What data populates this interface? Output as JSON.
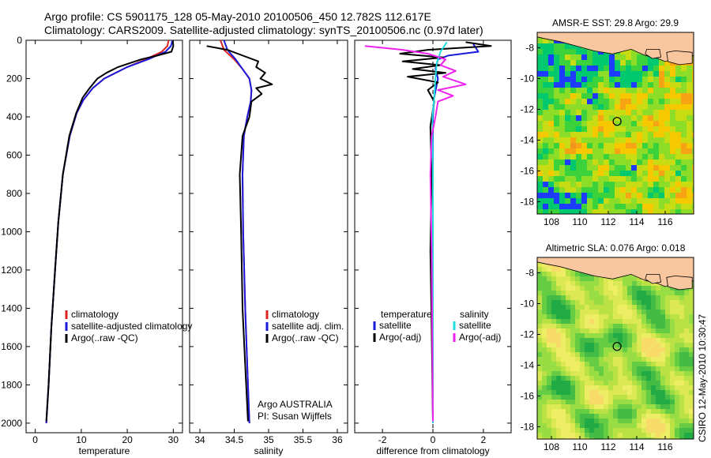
{
  "title_line1": "Argo profile: CS 5901175_128 05-May-2010 20100506_450 12.782S 112.617E",
  "title_line2": "Climatology: CARS2009. Satellite-adjusted climatology: synTS_20100506.nc (0.97d later)",
  "credit_vertical": "CSIRO 12-May-2010 10:30:47",
  "colors": {
    "climatology": "#dd2222",
    "satellite": "#1a1adc",
    "argo": "#000000",
    "sal_sat": "#22dddd",
    "sal_argo": "#ee22ee",
    "land": "#f9c79f"
  },
  "chart_data": [
    {
      "type": "line",
      "id": "temperature",
      "xlabel": "temperature",
      "xlim": [
        -2,
        32
      ],
      "ylim": [
        0,
        2050
      ],
      "xticks": [
        0,
        10,
        20,
        30
      ],
      "yticks": [
        0,
        200,
        400,
        600,
        800,
        1000,
        1200,
        1400,
        1600,
        1800,
        2000
      ],
      "legend": [
        "climatology",
        "satellite-adjusted climatology",
        "Argo(..raw -QC)"
      ],
      "series": [
        {
          "name": "climatology",
          "color": "#dd2222",
          "x": [
            29.0,
            28.7,
            27.5,
            24.0,
            20.0,
            15.0,
            12.5,
            10.5,
            9.0,
            7.5,
            6.0,
            5.0,
            4.3,
            3.5,
            2.9,
            2.4
          ],
          "y": [
            0,
            30,
            60,
            100,
            140,
            200,
            250,
            310,
            380,
            500,
            700,
            950,
            1200,
            1500,
            1800,
            2000
          ]
        },
        {
          "name": "satellite-adjusted climatology",
          "color": "#1a1adc",
          "x": [
            29.8,
            29.5,
            28.3,
            24.5,
            20.0,
            15.0,
            12.5,
            10.5,
            9.0,
            7.5,
            6.0,
            5.0,
            4.3,
            3.5,
            2.9,
            2.4
          ],
          "y": [
            0,
            30,
            60,
            100,
            140,
            200,
            250,
            310,
            380,
            500,
            700,
            950,
            1200,
            1500,
            1800,
            2000
          ]
        },
        {
          "name": "Argo(..raw -QC)",
          "color": "#000000",
          "x": [
            29.9,
            30.0,
            29.6,
            26.5,
            23.0,
            20.5,
            18.0,
            15.5,
            13.5,
            11.8,
            10.3,
            8.9,
            7.4,
            6.0,
            5.0,
            4.3,
            3.5,
            2.9,
            2.4
          ],
          "y": [
            5,
            30,
            60,
            80,
            100,
            120,
            140,
            170,
            200,
            250,
            300,
            380,
            500,
            700,
            950,
            1200,
            1500,
            1800,
            1990
          ]
        }
      ]
    },
    {
      "type": "line",
      "id": "salinity",
      "xlabel": "salinity",
      "xlim": [
        33.85,
        36.15
      ],
      "ylim": [
        0,
        2050
      ],
      "xticks": [
        34,
        34.5,
        35,
        35.5,
        36
      ],
      "yticks": [
        0,
        200,
        400,
        600,
        800,
        1000,
        1200,
        1400,
        1600,
        1800,
        2000
      ],
      "legend": [
        "climatology",
        "satellite adj. clim.",
        "Argo(..raw -QC)"
      ],
      "annotations": [
        "Argo AUSTRALIA",
        "PI: Susan Wijffels"
      ],
      "series": [
        {
          "name": "climatology",
          "color": "#dd2222",
          "x": [
            34.3,
            34.35,
            34.5,
            34.62,
            34.72,
            34.75,
            34.74,
            34.69,
            34.64,
            34.62,
            34.63,
            34.66,
            34.69,
            34.72
          ],
          "y": [
            0,
            50,
            100,
            150,
            200,
            260,
            320,
            400,
            500,
            700,
            1000,
            1400,
            1700,
            2000
          ]
        },
        {
          "name": "satellite adj. clim.",
          "color": "#1a1adc",
          "x": [
            34.35,
            34.4,
            34.52,
            34.62,
            34.72,
            34.75,
            34.74,
            34.69,
            34.64,
            34.62,
            34.63,
            34.66,
            34.69,
            34.72
          ],
          "y": [
            0,
            50,
            100,
            150,
            200,
            260,
            320,
            400,
            500,
            700,
            1000,
            1400,
            1700,
            2000
          ]
        },
        {
          "name": "Argo(..raw -QC)",
          "color": "#000000",
          "x": [
            34.1,
            34.4,
            34.55,
            34.85,
            34.82,
            34.95,
            34.88,
            35.05,
            34.82,
            34.9,
            34.75,
            34.72,
            34.62,
            34.58,
            34.6,
            34.62,
            34.66,
            34.7
          ],
          "y": [
            30,
            50,
            70,
            110,
            140,
            170,
            200,
            230,
            250,
            280,
            320,
            400,
            500,
            700,
            1000,
            1400,
            1700,
            1990
          ]
        }
      ]
    },
    {
      "type": "line",
      "id": "difference",
      "xlabel": "difference from climatology",
      "xlim": [
        -3.1,
        3.1
      ],
      "ylim": [
        0,
        2050
      ],
      "xticks": [
        -2,
        0,
        2
      ],
      "yticks": [
        0,
        200,
        400,
        600,
        800,
        1000,
        1200,
        1400,
        1600,
        1800,
        2000
      ],
      "legend_left_title": "temperature",
      "legend_right_title": "salinity",
      "legend": [
        "satellite",
        "Argo(-adj)",
        "satellite",
        "Argo(-adj)"
      ],
      "series": [
        {
          "name": "temperature satellite",
          "color": "#1a1adc",
          "x": [
            1.6,
            1.8,
            0.6,
            0.2,
            0.1,
            0.2,
            0.05,
            0,
            0,
            0,
            0,
            0
          ],
          "y": [
            20,
            60,
            80,
            100,
            150,
            200,
            300,
            400,
            700,
            1000,
            1500,
            2000
          ]
        },
        {
          "name": "temperature Argo(-adj)",
          "color": "#000000",
          "x": [
            1.3,
            2.3,
            -0.2,
            -1.3,
            0.4,
            -1.2,
            0.3,
            -0.8,
            0.5,
            -1.0,
            0.2,
            -0.2,
            0.05,
            -0.1,
            -0.05,
            -0.1,
            -0.05,
            0
          ],
          "y": [
            10,
            30,
            50,
            70,
            90,
            110,
            130,
            150,
            170,
            190,
            220,
            260,
            320,
            450,
            700,
            1100,
            1500,
            1990
          ]
        },
        {
          "name": "salinity satellite",
          "color": "#22dddd",
          "x": [
            0.55,
            0.3,
            0.15,
            0.1,
            0.05,
            -0.02,
            0,
            0,
            0
          ],
          "y": [
            10,
            60,
            120,
            200,
            300,
            400,
            700,
            1200,
            2000
          ]
        },
        {
          "name": "salinity Argo(-adj)",
          "color": "#ee22ee",
          "x": [
            -2.7,
            -1.2,
            -0.2,
            0.5,
            0.3,
            0.9,
            0.4,
            1.3,
            0.2,
            0.8,
            0.2,
            0.1,
            -0.05,
            -0.1,
            -0.05,
            0
          ],
          "y": [
            30,
            50,
            70,
            100,
            130,
            160,
            190,
            230,
            260,
            290,
            320,
            400,
            500,
            700,
            1100,
            1990
          ]
        }
      ]
    },
    {
      "type": "heatmap",
      "id": "sst_map",
      "title": "AMSR-E SST: 29.8  Argo: 29.9",
      "xlim": [
        107,
        118
      ],
      "ylim": [
        -18.8,
        -7
      ],
      "xticks": [
        108,
        110,
        112,
        114,
        116
      ],
      "yticks": [
        -8,
        -10,
        -12,
        -14,
        -16,
        -18
      ],
      "argo_location": [
        112.617,
        -12.782
      ]
    },
    {
      "type": "heatmap",
      "id": "sla_map",
      "title": "Altimetric SLA: 0.076  Argo: 0.018",
      "xlim": [
        107,
        118
      ],
      "ylim": [
        -18.8,
        -7
      ],
      "xticks": [
        108,
        110,
        112,
        114,
        116
      ],
      "yticks": [
        -8,
        -10,
        -12,
        -14,
        -16,
        -18
      ],
      "argo_location": [
        112.617,
        -12.782
      ]
    }
  ]
}
